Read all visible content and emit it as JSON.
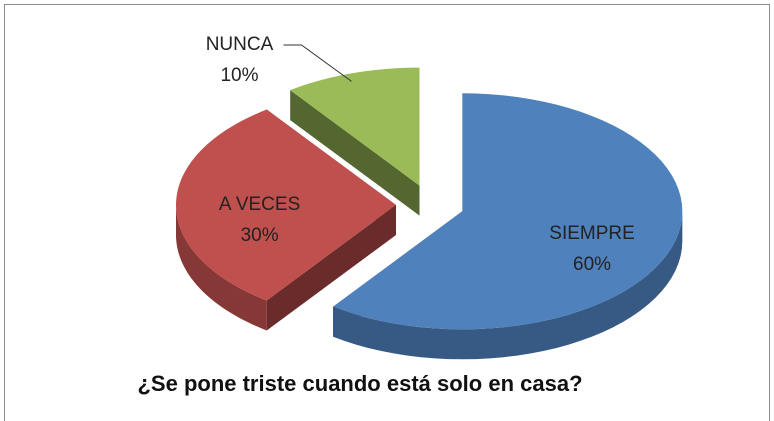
{
  "chart_data": {
    "type": "pie",
    "title": "¿Se pone triste cuando está solo en casa?",
    "categories": [
      "SIEMPRE",
      "A VECES",
      "NUNCA"
    ],
    "values": [
      60,
      30,
      10
    ],
    "value_labels": [
      "60%",
      "30%",
      "10%"
    ],
    "colors": [
      "#4f81bd",
      "#c0504d",
      "#9bbb59"
    ]
  }
}
